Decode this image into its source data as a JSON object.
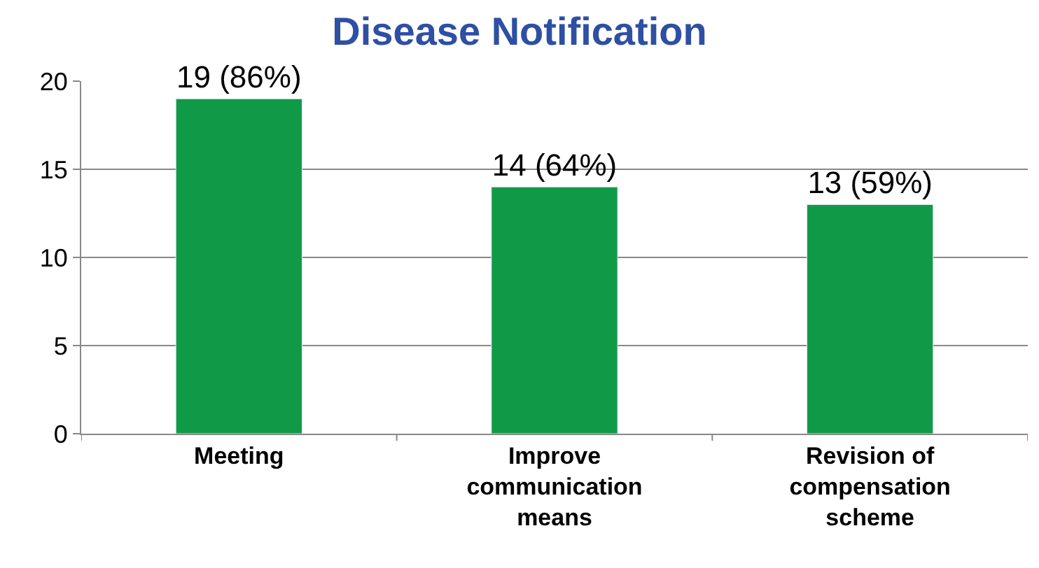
{
  "chart_data": {
    "type": "bar",
    "title": "Disease Notification",
    "categories": [
      "Meeting",
      "Improve communication means",
      "Revision of compensation scheme"
    ],
    "values": [
      19,
      14,
      13
    ],
    "color": "#109a48",
    "value_labels": [
      "19 (86%)",
      "14 (64%)",
      "13 (59%)"
    ],
    "ylim": [
      0,
      20
    ],
    "yticks": [
      0,
      5,
      10,
      15,
      20
    ],
    "grid": "y",
    "legend": false
  }
}
